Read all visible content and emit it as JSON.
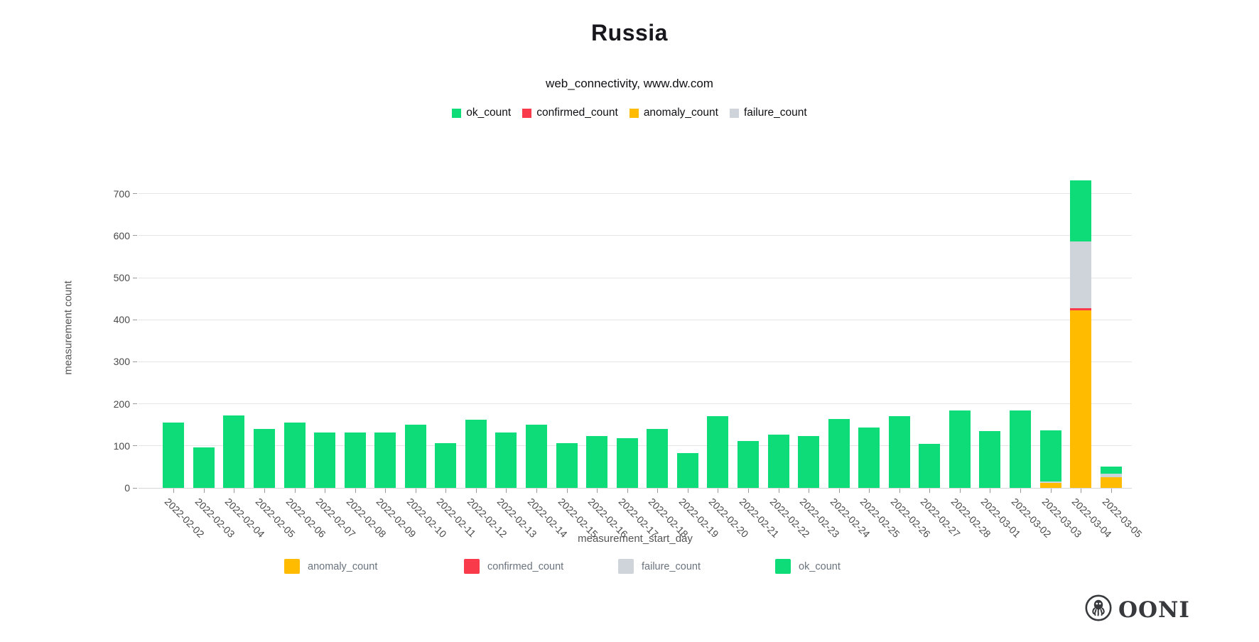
{
  "page": {
    "title": "Russia",
    "subtitle": "web_connectivity, www.dw.com"
  },
  "legend_top": [
    {
      "label": "ok_count",
      "color": "#0edc78"
    },
    {
      "label": "confirmed_count",
      "color": "#f93a4a"
    },
    {
      "label": "anomaly_count",
      "color": "#ffbb00"
    },
    {
      "label": "failure_count",
      "color": "#ced4da"
    }
  ],
  "legend_bottom": [
    {
      "label": "anomaly_count",
      "color": "#ffbb00"
    },
    {
      "label": "confirmed_count",
      "color": "#f93a4a"
    },
    {
      "label": "failure_count",
      "color": "#ced4da"
    },
    {
      "label": "ok_count",
      "color": "#0edc78"
    }
  ],
  "logo": {
    "text": "OONI"
  },
  "chart_data": {
    "type": "bar",
    "stacked": true,
    "title": "Russia",
    "subtitle": "web_connectivity, www.dw.com",
    "xlabel": "measurement_start_day",
    "ylabel": "measurement count",
    "ylim": [
      0,
      789
    ],
    "yticks": [
      0,
      100,
      200,
      300,
      400,
      500,
      600,
      700
    ],
    "grid": true,
    "legend_position": "top and bottom",
    "categories": [
      "2022-02-02",
      "2022-02-03",
      "2022-02-04",
      "2022-02-05",
      "2022-02-06",
      "2022-02-07",
      "2022-02-08",
      "2022-02-09",
      "2022-02-10",
      "2022-02-11",
      "2022-02-12",
      "2022-02-13",
      "2022-02-14",
      "2022-02-15",
      "2022-02-16",
      "2022-02-17",
      "2022-02-18",
      "2022-02-19",
      "2022-02-20",
      "2022-02-21",
      "2022-02-22",
      "2022-02-23",
      "2022-02-24",
      "2022-02-25",
      "2022-02-26",
      "2022-02-27",
      "2022-02-28",
      "2022-03-01",
      "2022-03-02",
      "2022-03-03",
      "2022-03-04",
      "2022-03-05"
    ],
    "series": [
      {
        "name": "anomaly_count",
        "color": "#ffbb00",
        "values": [
          0,
          0,
          0,
          0,
          0,
          0,
          0,
          0,
          0,
          0,
          0,
          0,
          0,
          0,
          0,
          0,
          0,
          0,
          0,
          0,
          0,
          0,
          0,
          0,
          0,
          0,
          0,
          0,
          0,
          12,
          423,
          26
        ]
      },
      {
        "name": "confirmed_count",
        "color": "#f93a4a",
        "values": [
          0,
          0,
          0,
          0,
          0,
          0,
          0,
          0,
          0,
          0,
          0,
          0,
          0,
          0,
          0,
          0,
          0,
          0,
          0,
          0,
          0,
          0,
          0,
          0,
          0,
          0,
          0,
          0,
          0,
          0,
          4,
          0
        ]
      },
      {
        "name": "failure_count",
        "color": "#ced4da",
        "values": [
          0,
          0,
          0,
          0,
          0,
          0,
          0,
          0,
          0,
          0,
          0,
          0,
          0,
          0,
          0,
          0,
          0,
          0,
          0,
          0,
          0,
          0,
          0,
          0,
          0,
          0,
          0,
          0,
          0,
          4,
          160,
          8
        ]
      },
      {
        "name": "ok_count",
        "color": "#0edc78",
        "values": [
          155,
          97,
          173,
          141,
          156,
          131,
          131,
          131,
          150,
          106,
          162,
          131,
          151,
          107,
          124,
          118,
          141,
          82,
          170,
          111,
          126,
          124,
          164,
          143,
          170,
          105,
          185,
          136,
          185,
          121,
          144,
          16
        ]
      }
    ]
  }
}
